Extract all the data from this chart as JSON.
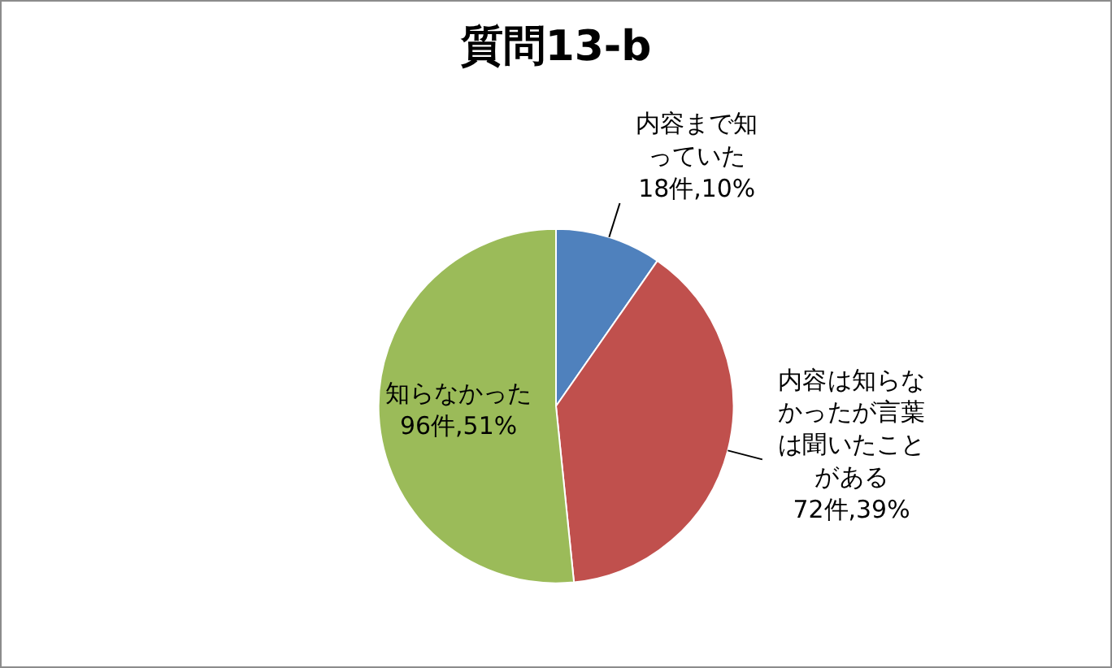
{
  "chart_data": {
    "type": "pie",
    "title": "質問13-b",
    "categories": [
      "内容まで知っていた",
      "内容は知らなかったが言葉は聞いたことがある",
      "知らなかった"
    ],
    "values": [
      18,
      72,
      96
    ],
    "value_labels": [
      "18件,10%",
      "72件,39%",
      "96件,51%"
    ],
    "colors": [
      "#4f81bd",
      "#c0504d",
      "#9bbb59"
    ],
    "legend": false
  }
}
